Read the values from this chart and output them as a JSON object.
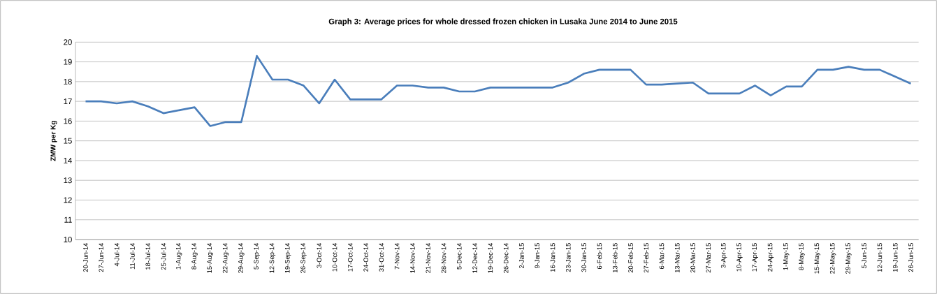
{
  "chart_data": {
    "type": "line",
    "title": "Graph 3: Average prices for whole dressed frozen chicken in Lusaka June 2014 to June 2015",
    "ylabel": "ZMW per Kg",
    "categories": [
      "20-Jun-14",
      "27-Jun-14",
      "4-Jul-14",
      "11-Jul-14",
      "18-Jul-14",
      "25-Jul-14",
      "1-Aug-14",
      "8-Aug-14",
      "15-Aug-14",
      "22-Aug-14",
      "29-Aug-14",
      "5-Sep-14",
      "12-Sep-14",
      "19-Sep-14",
      "26-Sep-14",
      "3-Oct-14",
      "10-Oct-14",
      "17-Oct-14",
      "24-Oct-14",
      "31-Oct-14",
      "7-Nov-14",
      "14-Nov-14",
      "21-Nov-14",
      "28-Nov-14",
      "5-Dec-14",
      "12-Dec-14",
      "19-Dec-14",
      "26-Dec-14",
      "2-Jan-15",
      "9-Jan-15",
      "16-Jan-15",
      "23-Jan-15",
      "30-Jan-15",
      "6-Feb-15",
      "13-Feb-15",
      "20-Feb-15",
      "27-Feb-15",
      "6-Mar-15",
      "13-Mar-15",
      "20-Mar-15",
      "27-Mar-15",
      "3-Apr-15",
      "10-Apr-15",
      "17-Apr-15",
      "24-Apr-15",
      "1-May-15",
      "8-May-15",
      "15-May-15",
      "22-May-15",
      "29-May-15",
      "5-Jun-15",
      "12-Jun-15",
      "19-Jun-15",
      "26-Jun-15"
    ],
    "values": [
      17.0,
      17.0,
      16.9,
      17.0,
      16.75,
      16.4,
      16.55,
      16.7,
      15.75,
      15.95,
      15.95,
      19.3,
      18.1,
      18.1,
      17.8,
      16.9,
      18.1,
      17.1,
      17.1,
      17.1,
      17.8,
      17.8,
      17.7,
      17.7,
      17.5,
      17.5,
      17.7,
      17.7,
      17.7,
      17.7,
      17.7,
      17.95,
      18.4,
      18.6,
      18.6,
      18.6,
      17.85,
      17.85,
      17.9,
      17.95,
      17.4,
      17.4,
      17.4,
      17.8,
      17.3,
      17.75,
      17.75,
      18.6,
      18.6,
      18.75,
      18.6,
      18.6,
      18.25,
      17.9
    ],
    "color": "#4a7ebb",
    "ylim": [
      10,
      20
    ],
    "yticks": [
      10,
      11,
      12,
      13,
      14,
      15,
      16,
      17,
      18,
      19,
      20
    ],
    "grid": "y",
    "marker": "none"
  }
}
